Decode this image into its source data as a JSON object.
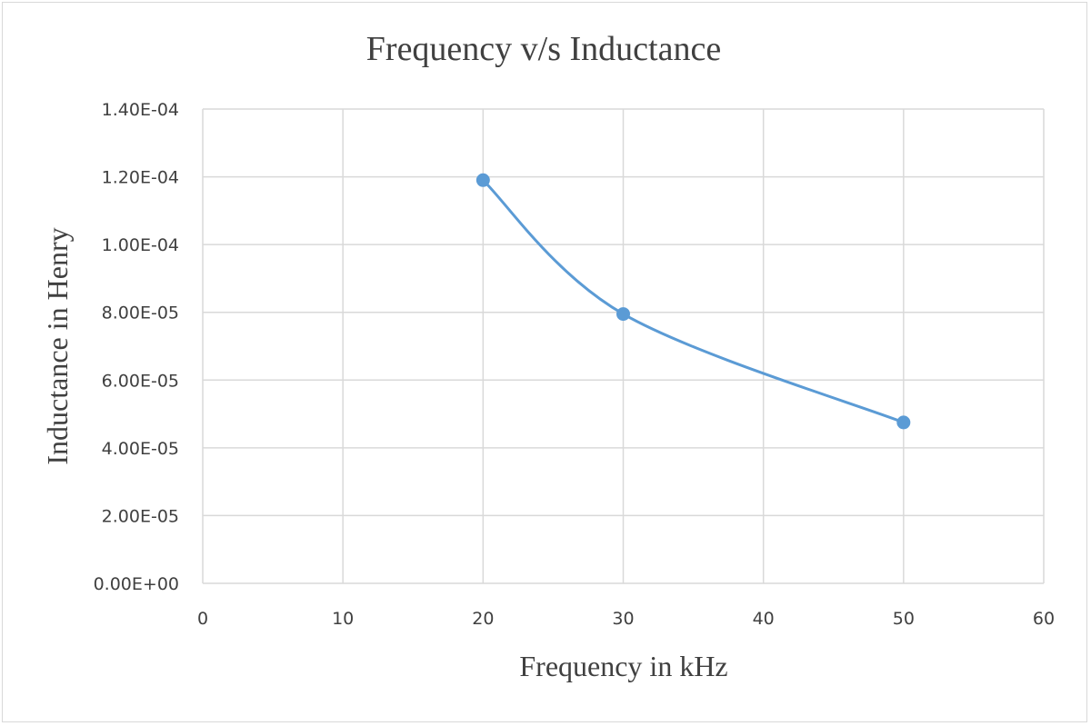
{
  "chart_data": {
    "type": "scatter",
    "title": "Frequency v/s Inductance",
    "xlabel": "Frequency in kHz",
    "ylabel": "Inductance in Henry",
    "xlim": [
      0,
      60
    ],
    "ylim": [
      0,
      0.00014
    ],
    "x_ticks": [
      0,
      10,
      20,
      30,
      40,
      50,
      60
    ],
    "y_ticks": [
      0,
      2e-05,
      4e-05,
      6e-05,
      8e-05,
      0.0001,
      0.00012,
      0.00014
    ],
    "x_tick_labels": [
      "0",
      "10",
      "20",
      "30",
      "40",
      "50",
      "60"
    ],
    "y_tick_labels": [
      "0.00E+00",
      "2.00E-05",
      "4.00E-05",
      "6.00E-05",
      "8.00E-05",
      "1.00E-04",
      "1.20E-04",
      "1.40E-04"
    ],
    "grid": true,
    "smooth": true,
    "series": [
      {
        "x": [
          20,
          30,
          50
        ],
        "y": [
          0.000119,
          7.95e-05,
          4.75e-05
        ],
        "color": "#5b9bd5"
      }
    ]
  }
}
